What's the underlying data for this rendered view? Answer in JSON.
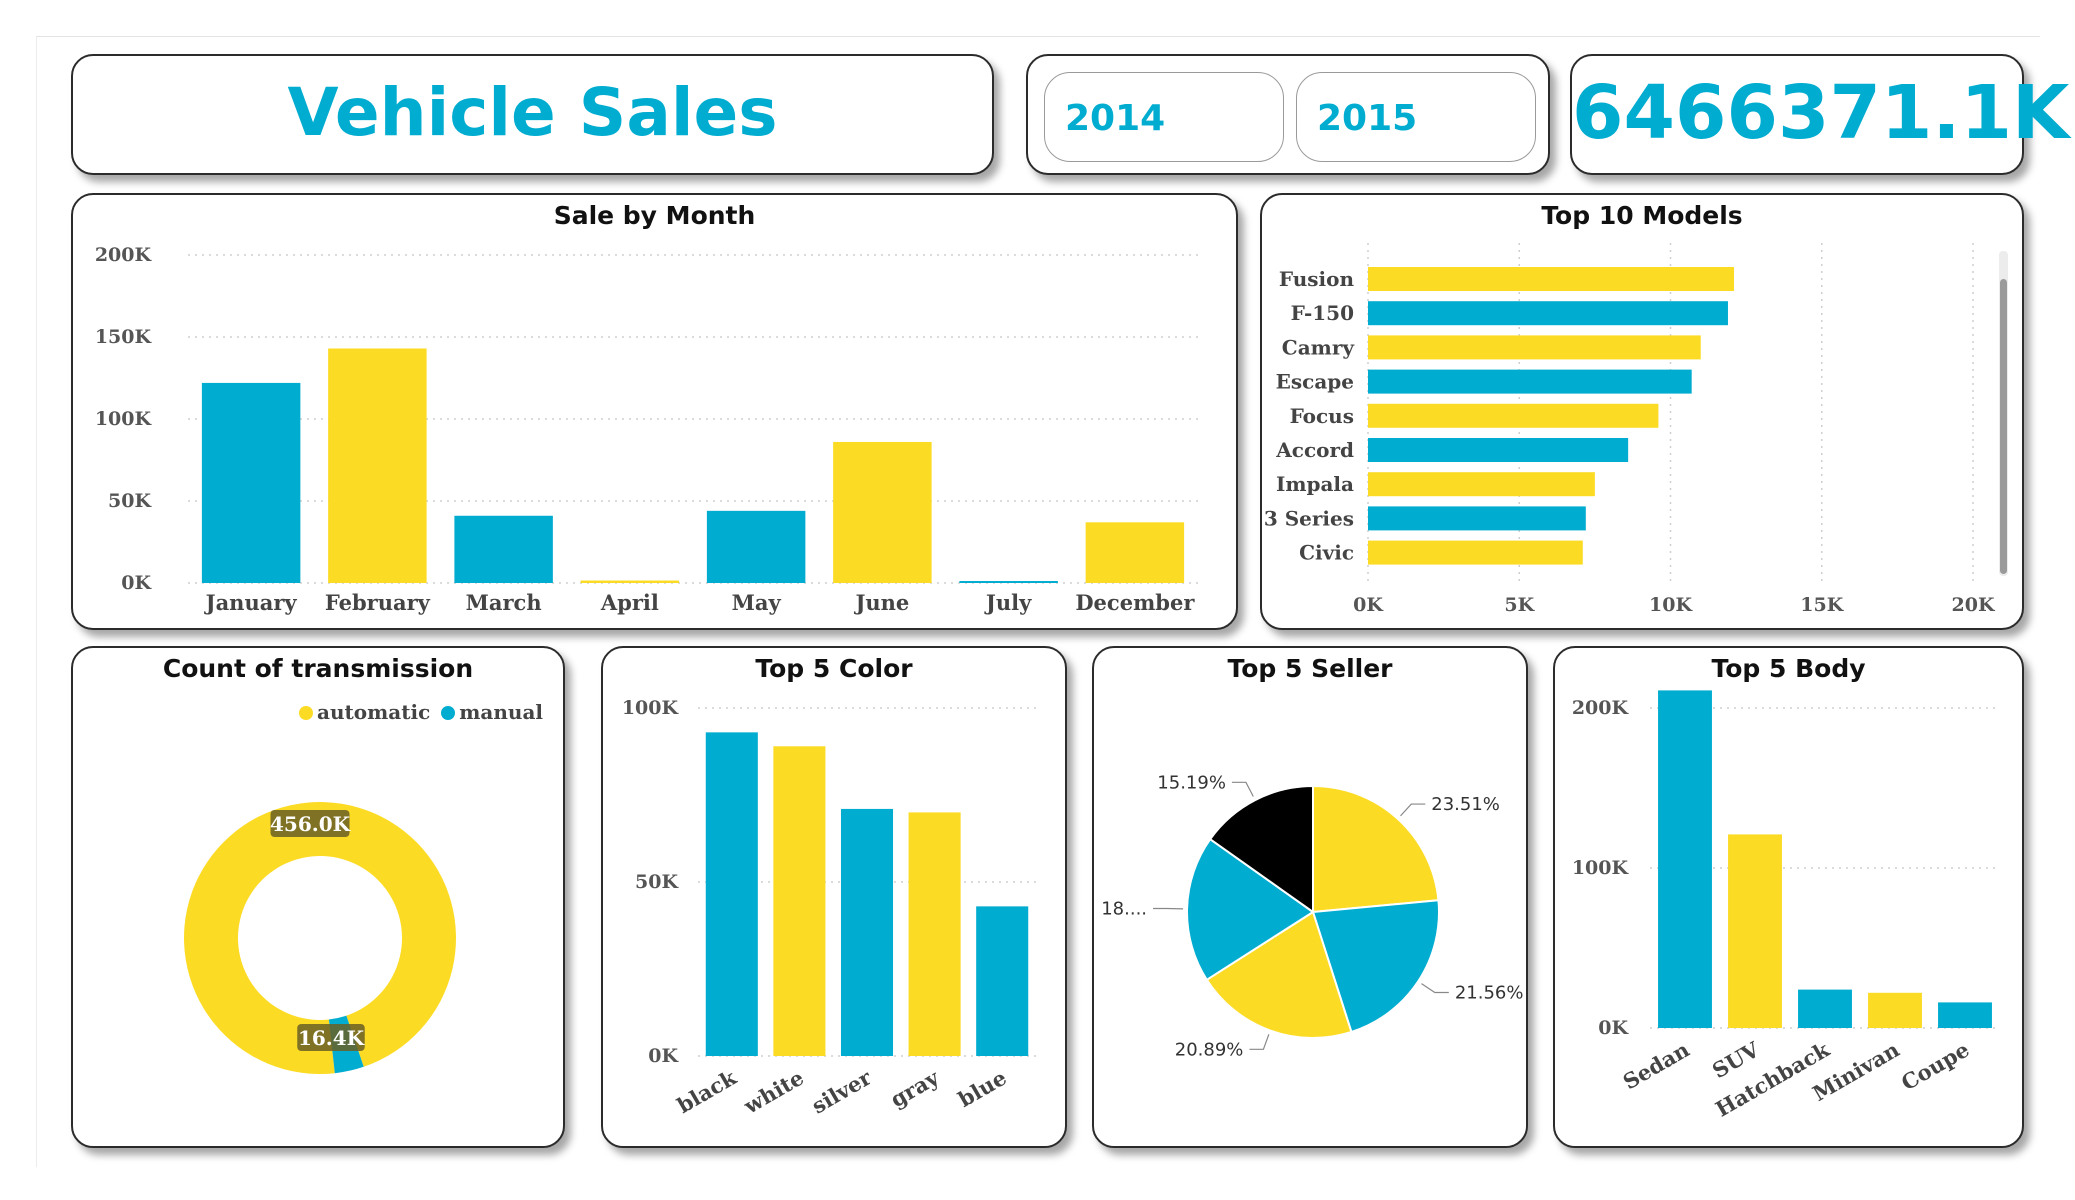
{
  "header": {
    "title": "Vehicle Sales"
  },
  "year_slicer": {
    "options": [
      "2014",
      "2015"
    ]
  },
  "kpi": {
    "total_sales": "6466371.1K"
  },
  "colors": {
    "yellow": "#fcdb25",
    "blue": "#00acd0",
    "black": "#000000"
  },
  "chart_data": [
    {
      "id": "sale_by_month",
      "type": "bar",
      "title": "Sale by Month",
      "categories": [
        "January",
        "February",
        "March",
        "April",
        "May",
        "June",
        "July",
        "December"
      ],
      "values": [
        122000,
        143000,
        41000,
        1500,
        44000,
        86000,
        1200,
        37000
      ],
      "bar_colors": [
        "#00acd0",
        "#fcdb25",
        "#00acd0",
        "#fcdb25",
        "#00acd0",
        "#fcdb25",
        "#00acd0",
        "#fcdb25"
      ],
      "ylim": [
        0,
        200000
      ],
      "yticks": [
        0,
        50000,
        100000,
        150000,
        200000
      ],
      "ytick_labels": [
        "0K",
        "50K",
        "100K",
        "150K",
        "200K"
      ],
      "grid": true
    },
    {
      "id": "top_10_models",
      "type": "bar",
      "orientation": "horizontal",
      "title": "Top 10 Models",
      "categories": [
        "Fusion",
        "F-150",
        "Camry",
        "Escape",
        "Focus",
        "Accord",
        "Impala",
        "3 Series",
        "Civic"
      ],
      "values": [
        12100,
        11900,
        11000,
        10700,
        9600,
        8600,
        7500,
        7200,
        7100
      ],
      "bar_colors": [
        "#fcdb25",
        "#00acd0",
        "#fcdb25",
        "#00acd0",
        "#fcdb25",
        "#00acd0",
        "#fcdb25",
        "#00acd0",
        "#fcdb25"
      ],
      "xlim": [
        0,
        20000
      ],
      "xticks": [
        0,
        5000,
        10000,
        15000,
        20000
      ],
      "xtick_labels": [
        "0K",
        "5K",
        "10K",
        "15K",
        "20K"
      ],
      "grid": true
    },
    {
      "id": "count_of_transmission",
      "type": "pie",
      "style": "donut",
      "title": "Count of transmission",
      "labels": [
        "automatic",
        "manual"
      ],
      "values": [
        456000,
        16400
      ],
      "value_labels": [
        "456.0K",
        "16.4K"
      ],
      "slice_colors": [
        "#fcdb25",
        "#00acd0"
      ],
      "legend": "top-right"
    },
    {
      "id": "top_5_color",
      "type": "bar",
      "title": "Top 5 Color",
      "categories": [
        "black",
        "white",
        "silver",
        "gray",
        "blue"
      ],
      "values": [
        93000,
        89000,
        71000,
        70000,
        43000
      ],
      "bar_colors": [
        "#00acd0",
        "#fcdb25",
        "#00acd0",
        "#fcdb25",
        "#00acd0"
      ],
      "ylim": [
        0,
        100000
      ],
      "yticks": [
        0,
        50000,
        100000
      ],
      "ytick_labels": [
        "0K",
        "50K",
        "100K"
      ],
      "grid": true
    },
    {
      "id": "top_5_seller",
      "type": "pie",
      "title": "Top 5 Seller",
      "values": [
        23.51,
        21.56,
        20.89,
        18.85,
        15.19
      ],
      "value_labels": [
        "23.51%",
        "21.56%",
        "20.89%",
        "18....",
        "15.19%"
      ],
      "slice_colors": [
        "#fcdb25",
        "#00acd0",
        "#fcdb25",
        "#00acd0",
        "#000000"
      ]
    },
    {
      "id": "top_5_body",
      "type": "bar",
      "title": "Top 5 Body",
      "categories": [
        "Sedan",
        "SUV",
        "Hatchback",
        "Minivan",
        "Coupe"
      ],
      "values": [
        211000,
        121000,
        24000,
        22000,
        16000
      ],
      "bar_colors": [
        "#00acd0",
        "#fcdb25",
        "#00acd0",
        "#fcdb25",
        "#00acd0"
      ],
      "ylim": [
        0,
        200000
      ],
      "yticks": [
        0,
        100000,
        200000
      ],
      "ytick_labels": [
        "0K",
        "100K",
        "200K"
      ],
      "grid": true
    }
  ]
}
